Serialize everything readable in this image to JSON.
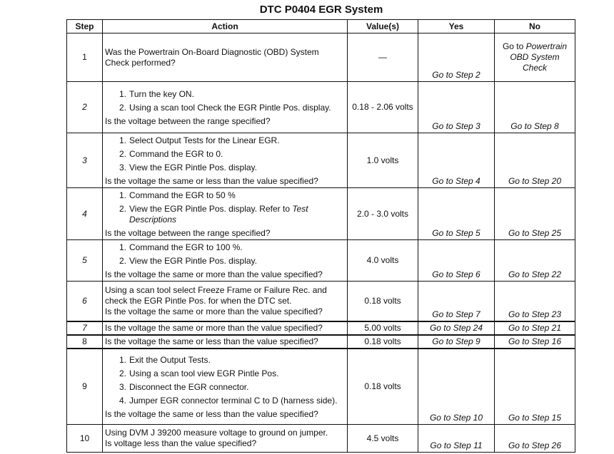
{
  "title": "DTC P0404 EGR System",
  "headers": {
    "step": "Step",
    "action": "Action",
    "value": "Value(s)",
    "yes": "Yes",
    "no": "No"
  },
  "rows": [
    {
      "step": "1",
      "italic": false,
      "intro": "Was the Powertrain On-Board Diagnostic (OBD) System Check performed?",
      "items": [],
      "question": "",
      "value": "—",
      "yes": "Go to Step 2",
      "no_prefix": "Go to ",
      "no": "Powertrain OBD System Check"
    },
    {
      "step": "2",
      "italic": true,
      "intro": "",
      "items": [
        "Turn the key ON.",
        "Using a scan tool Check the EGR Pintle Pos. display."
      ],
      "question": "Is the voltage between the range specified?",
      "value": "0.18 - 2.06 volts",
      "yes": "Go to Step 3",
      "no": "Go to Step 8"
    },
    {
      "step": "3",
      "italic": true,
      "intro": "",
      "items": [
        "Select Output Tests for the Linear EGR.",
        "Command the EGR to 0.",
        "View the EGR Pintle Pos. display."
      ],
      "question": "Is the voltage the same or less than the value specified?",
      "value": "1.0 volts",
      "yes": "Go to Step 4",
      "no": "Go to Step 20"
    },
    {
      "step": "4",
      "italic": true,
      "intro": "",
      "items": [
        "Command the EGR to 50 %",
        "View the EGR Pintle Pos. display. Refer to "
      ],
      "item_ref": "Test Descriptions",
      "question": "Is the voltage between the range specified?",
      "value": "2.0 - 3.0 volts",
      "yes": "Go to Step 5",
      "no": "Go to Step 25"
    },
    {
      "step": "5",
      "italic": true,
      "intro": "",
      "items": [
        "Command the EGR to 100 %.",
        "View the EGR Pintle Pos. display."
      ],
      "question": "Is the voltage the same or more than the value specified?",
      "value": "4.0 volts",
      "yes": "Go to Step 6",
      "no": "Go to Step 22"
    },
    {
      "step": "6",
      "italic": true,
      "intro": "Using a scan tool select Freeze Frame or Failure Rec. and check the EGR Pintle Pos. for when the DTC set.",
      "items": [],
      "question": "Is the voltage the same or more than the value specified?",
      "value": "0.18 volts",
      "yes": "Go to Step 7",
      "no": "Go to Step 23"
    },
    {
      "step": "7",
      "italic": true,
      "intro": "",
      "items": [],
      "question": "Is the voltage the same or more than the value specified?",
      "value": "5.00 volts",
      "yes": "Go to Step 24",
      "no": "Go to Step 21"
    },
    {
      "step": "8",
      "italic": false,
      "intro": "",
      "items": [],
      "question": "Is the voltage the same or less than the value specified?",
      "value": "0.18 volts",
      "yes": "Go to Step 9",
      "no": "Go to Step 16"
    },
    {
      "step": "9",
      "italic": false,
      "intro": "",
      "items": [
        "Exit the Output Tests.",
        "Using a scan tool view EGR Pintle Pos.",
        "Disconnect the EGR connector.",
        "Jumper EGR connector terminal C to D (harness side)."
      ],
      "question": "Is the voltage the same or less than the value specified?",
      "value": "0.18 volts",
      "yes": "Go to Step 10",
      "no": "Go to Step 15"
    },
    {
      "step": "10",
      "italic": false,
      "intro": "Using DVM J 39200 measure voltage to ground on jumper.",
      "items": [],
      "question": "Is voltage less than the value specified?",
      "value": "4.5 volts",
      "yes": "Go to Step 11",
      "no": "Go to Step 26"
    }
  ]
}
